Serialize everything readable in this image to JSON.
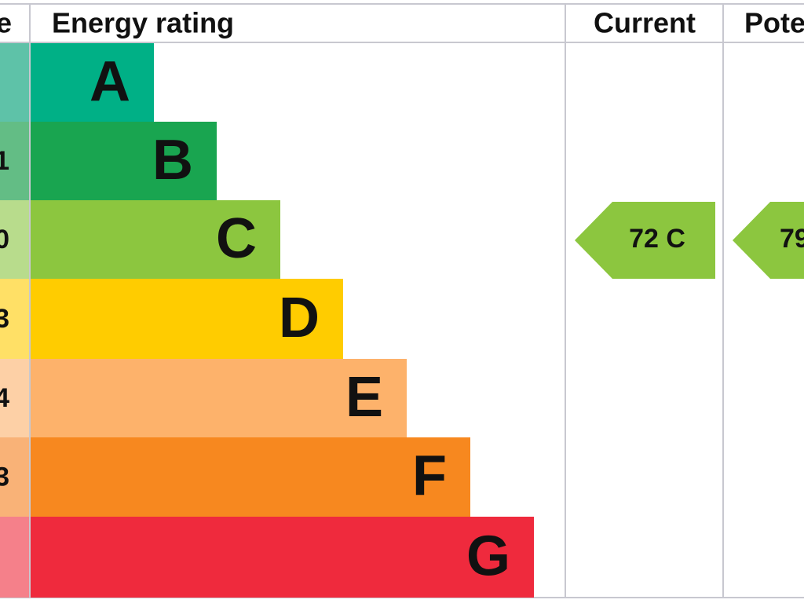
{
  "header": {
    "score": "e",
    "rating": "Energy rating",
    "current": "Current",
    "potential": "Pote"
  },
  "rows": [
    {
      "letter": "A",
      "score": null
    },
    {
      "letter": "B",
      "score": "1"
    },
    {
      "letter": "C",
      "score": "0"
    },
    {
      "letter": "D",
      "score": "3"
    },
    {
      "letter": "E",
      "score": "4"
    },
    {
      "letter": "F",
      "score": "3"
    },
    {
      "letter": "G",
      "score": null
    }
  ],
  "current": "72  C",
  "potential": "79"
}
